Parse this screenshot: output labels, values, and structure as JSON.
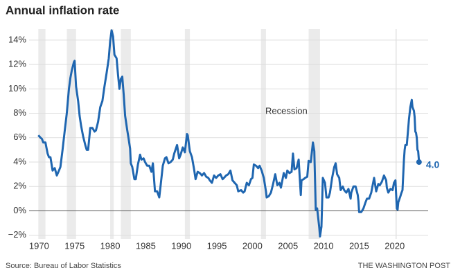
{
  "chart_data": {
    "type": "line",
    "title": "Annual inflation rate",
    "source": "Source: Bureau of Labor Statistics",
    "credit": "THE WASHINGTON POST",
    "recession_label": "Recession",
    "recessions": [
      [
        1969.9,
        1970.9
      ],
      [
        1973.9,
        1975.2
      ],
      [
        1980.0,
        1980.5
      ],
      [
        1981.5,
        1982.9
      ],
      [
        1990.5,
        1991.2
      ],
      [
        2001.2,
        2001.9
      ],
      [
        2007.9,
        2009.5
      ],
      [
        2020.1,
        2020.3
      ]
    ],
    "recession_color": "#ebebeb",
    "xlim": [
      1968.6,
      2024.7
    ],
    "xticks": [
      1970,
      1975,
      1980,
      1985,
      1990,
      1995,
      2000,
      2005,
      2010,
      2015,
      2020
    ],
    "ylim": [
      -2.3,
      14.9
    ],
    "yticks": [
      {
        "value": -2,
        "label": "−2%"
      },
      {
        "value": 0,
        "label": "0%"
      },
      {
        "value": 2,
        "label": "2%"
      },
      {
        "value": 4,
        "label": "4%"
      },
      {
        "value": 6,
        "label": "6%"
      },
      {
        "value": 8,
        "label": "8%"
      },
      {
        "value": 10,
        "label": "10%"
      },
      {
        "value": 12,
        "label": "12%"
      },
      {
        "value": 14,
        "label": "14%"
      }
    ],
    "grid": true,
    "x": [
      1969.9,
      1970.2,
      1970.4,
      1970.6,
      1970.9,
      1971.2,
      1971.4,
      1971.6,
      1971.9,
      1972.2,
      1972.5,
      1972.8,
      1973.0,
      1973.3,
      1973.6,
      1973.9,
      1974.2,
      1974.4,
      1974.6,
      1974.9,
      1975.0,
      1975.2,
      1975.5,
      1975.7,
      1975.9,
      1976.2,
      1976.5,
      1976.7,
      1976.9,
      1977.2,
      1977.5,
      1977.8,
      1978.0,
      1978.3,
      1978.6,
      1978.9,
      1979.2,
      1979.5,
      1979.8,
      1980.0,
      1980.2,
      1980.4,
      1980.6,
      1980.9,
      1981.1,
      1981.3,
      1981.5,
      1981.7,
      1981.9,
      1982.1,
      1982.4,
      1982.6,
      1982.8,
      1982.9,
      1983.1,
      1983.4,
      1983.6,
      1983.9,
      1984.2,
      1984.4,
      1984.7,
      1984.9,
      1985.2,
      1985.5,
      1985.8,
      1986.0,
      1986.3,
      1986.6,
      1986.9,
      1987.1,
      1987.4,
      1987.7,
      1987.9,
      1988.2,
      1988.5,
      1988.8,
      1989.0,
      1989.4,
      1989.7,
      1989.9,
      1990.2,
      1990.5,
      1990.8,
      1990.9,
      1991.2,
      1991.5,
      1991.8,
      1992.0,
      1992.3,
      1992.6,
      1992.9,
      1993.2,
      1993.5,
      1993.8,
      1994.0,
      1994.3,
      1994.6,
      1994.9,
      1995.2,
      1995.5,
      1995.8,
      1996.0,
      1996.3,
      1996.6,
      1996.9,
      1997.2,
      1997.5,
      1997.8,
      1998.0,
      1998.4,
      1998.7,
      1998.9,
      1999.2,
      1999.5,
      1999.8,
      2000.0,
      2000.2,
      2000.5,
      2000.8,
      2001.0,
      2001.3,
      2001.6,
      2001.9,
      2002.0,
      2002.3,
      2002.6,
      2002.9,
      2003.2,
      2003.5,
      2003.8,
      2004.0,
      2004.4,
      2004.7,
      2004.9,
      2005.2,
      2005.5,
      2005.7,
      2005.9,
      2006.2,
      2006.5,
      2006.8,
      2006.9,
      2007.2,
      2007.4,
      2007.7,
      2007.9,
      2008.2,
      2008.5,
      2008.7,
      2008.9,
      2009.1,
      2009.4,
      2009.5,
      2009.7,
      2009.9,
      2010.2,
      2010.4,
      2010.7,
      2010.9,
      2011.2,
      2011.5,
      2011.7,
      2011.9,
      2012.2,
      2012.4,
      2012.7,
      2012.9,
      2013.2,
      2013.5,
      2013.8,
      2013.9,
      2014.2,
      2014.5,
      2014.8,
      2014.9,
      2015.0,
      2015.3,
      2015.6,
      2015.9,
      2016.1,
      2016.4,
      2016.7,
      2016.9,
      2017.1,
      2017.4,
      2017.7,
      2017.9,
      2018.2,
      2018.5,
      2018.8,
      2018.9,
      2019.1,
      2019.4,
      2019.7,
      2019.9,
      2020.1,
      2020.3,
      2020.4,
      2020.5,
      2020.8,
      2020.9,
      2021.1,
      2021.3,
      2021.4,
      2021.5,
      2021.7,
      2021.9,
      2022.0,
      2022.2,
      2022.4,
      2022.5,
      2022.7,
      2022.8,
      2022.9,
      2023.0,
      2023.1,
      2023.2,
      2023.3,
      2023.42
    ],
    "series": [
      {
        "color": "#1f66b0",
        "values": [
          6.2,
          6.0,
          5.9,
          5.6,
          5.6,
          4.7,
          4.4,
          4.4,
          3.3,
          3.5,
          2.9,
          3.3,
          3.6,
          5.0,
          6.5,
          8.0,
          10.0,
          10.9,
          11.5,
          12.2,
          12.3,
          10.2,
          9.0,
          7.8,
          7.0,
          6.1,
          5.4,
          5.0,
          5.0,
          6.8,
          6.8,
          6.5,
          6.6,
          7.3,
          8.5,
          9.0,
          10.2,
          11.3,
          12.5,
          13.9,
          14.8,
          14.3,
          12.8,
          12.5,
          11.2,
          10.0,
          10.8,
          11.0,
          9.5,
          7.8,
          6.6,
          5.9,
          5.1,
          3.9,
          3.6,
          2.6,
          2.6,
          3.8,
          4.6,
          4.2,
          4.3,
          4.0,
          3.7,
          3.7,
          3.2,
          3.9,
          1.6,
          1.6,
          1.1,
          2.1,
          3.7,
          4.3,
          4.4,
          3.9,
          4.0,
          4.2,
          4.7,
          5.4,
          4.3,
          4.6,
          5.2,
          4.8,
          6.3,
          6.2,
          4.9,
          4.4,
          3.4,
          2.6,
          3.2,
          3.1,
          2.9,
          3.1,
          2.8,
          2.7,
          2.5,
          2.3,
          2.9,
          2.7,
          2.9,
          3.0,
          2.6,
          2.7,
          2.9,
          3.0,
          3.3,
          2.5,
          2.3,
          2.1,
          1.6,
          1.7,
          1.5,
          1.6,
          2.3,
          2.1,
          2.6,
          2.7,
          3.8,
          3.7,
          3.5,
          3.7,
          3.3,
          2.7,
          1.6,
          1.1,
          1.2,
          1.5,
          2.2,
          3.0,
          2.1,
          2.3,
          1.9,
          3.1,
          2.7,
          3.3,
          3.1,
          3.2,
          4.7,
          3.4,
          3.5,
          4.2,
          1.3,
          2.5,
          2.6,
          2.7,
          2.8,
          4.1,
          4.0,
          5.6,
          4.9,
          0.1,
          0.2,
          -1.4,
          -2.1,
          -1.3,
          2.7,
          2.3,
          1.1,
          1.1,
          1.5,
          2.7,
          3.6,
          3.9,
          3.0,
          2.7,
          1.7,
          2.0,
          1.7,
          1.5,
          1.8,
          1.0,
          1.5,
          2.0,
          2.0,
          1.3,
          0.8,
          -0.1,
          -0.1,
          0.2,
          0.7,
          1.0,
          1.0,
          1.5,
          2.1,
          2.7,
          1.6,
          2.2,
          2.1,
          2.4,
          2.9,
          2.5,
          1.9,
          1.5,
          1.8,
          1.7,
          2.3,
          2.5,
          0.2,
          0.1,
          0.7,
          1.2,
          1.4,
          1.7,
          4.2,
          5.0,
          5.4,
          5.4,
          6.8,
          7.5,
          8.5,
          9.1,
          8.5,
          8.2,
          7.7,
          6.5,
          6.4,
          6.0,
          5.0,
          4.9,
          4.0
        ]
      }
    ],
    "annotations": [
      {
        "label": "4.0",
        "x": 2023.42,
        "y": 4.0
      }
    ]
  }
}
